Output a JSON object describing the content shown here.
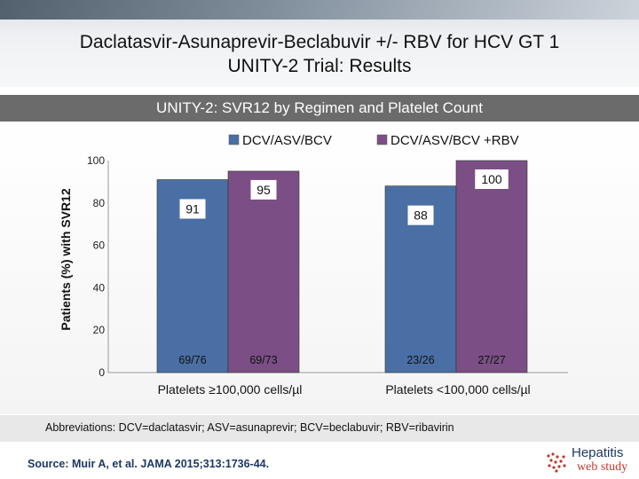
{
  "header": {
    "title_line1": "Daclatasvir-Asunaprevir-Beclabuvir +/- RBV for HCV GT 1",
    "title_line2": "UNITY-2 Trial: Results"
  },
  "subtitle": "UNITY-2: SVR12 by Regimen and Platelet Count",
  "chart_data": {
    "type": "bar",
    "ylabel": "Patients (%) with SVR12",
    "ylim": [
      0,
      100
    ],
    "yticks": [
      0,
      20,
      40,
      60,
      80,
      100
    ],
    "categories": [
      "Platelets ≥100,000 cells/µl",
      "Platelets <100,000 cells/µl"
    ],
    "series": [
      {
        "name": "DCV/ASV/BCV",
        "color": "#4a6fa5",
        "values": [
          91,
          88
        ],
        "labels": [
          "91",
          "88"
        ],
        "fractions": [
          "69/76",
          "23/26"
        ]
      },
      {
        "name": "DCV/ASV/BCV +RBV",
        "color": "#7b4f85",
        "values": [
          95,
          100
        ],
        "labels": [
          "95",
          "100"
        ],
        "fractions": [
          "69/73",
          "27/27"
        ]
      }
    ],
    "legend_position": "top"
  },
  "footer": {
    "abbreviations": "Abbreviations: DCV=daclatasvir; ASV=asunaprevir; BCV=beclabuvir; RBV=ribavirin",
    "source": "Source: Muir A, et al. JAMA 2015;313:1736-44.",
    "logo_name": "Hepatitis",
    "logo_sub": "web study"
  }
}
